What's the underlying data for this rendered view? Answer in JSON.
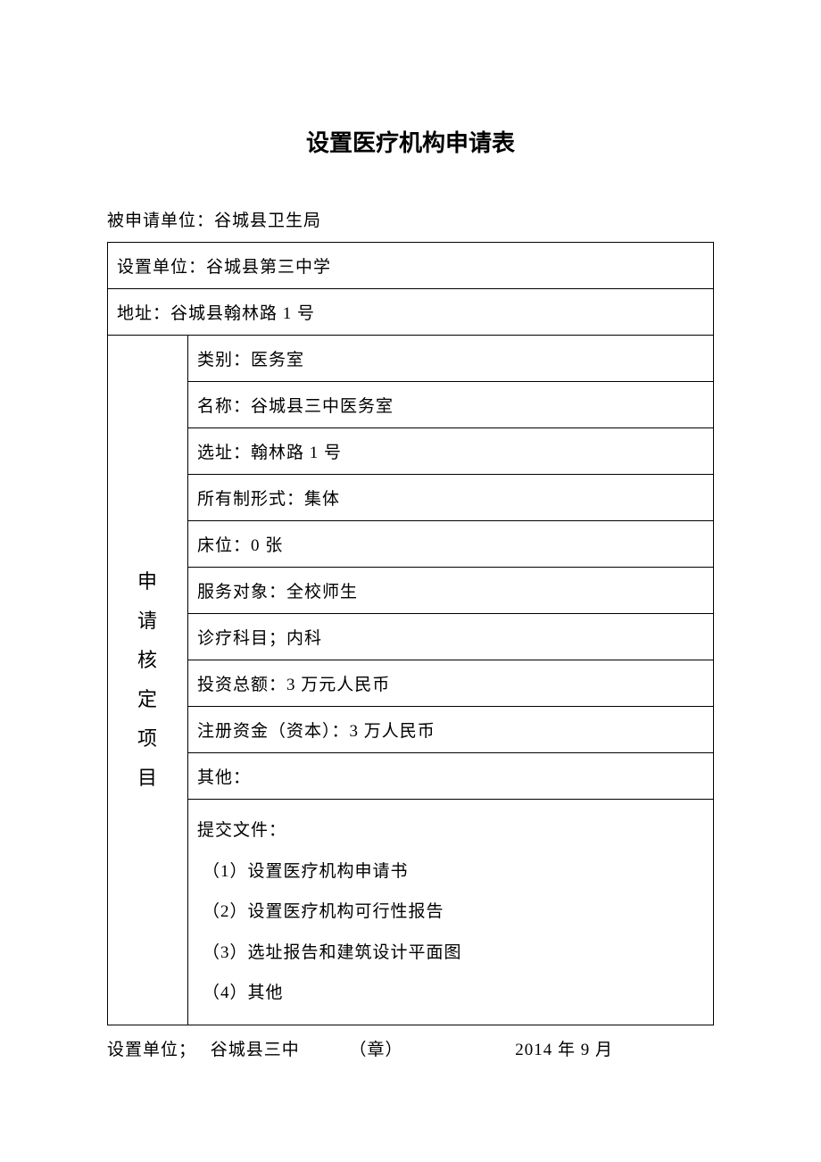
{
  "title": "设置医疗机构申请表",
  "pre_table": "被申请单位：谷城县卫生局",
  "table": {
    "row_unit": "设置单位：谷城县第三中学",
    "row_address": "地址：谷城县翰林路 1 号",
    "side_label_chars": [
      "申",
      "请",
      "核",
      "定",
      "项",
      "目"
    ],
    "rows": {
      "category": "类别：医务室",
      "name": "名称：谷城县三中医务室",
      "site": "选址：翰林路 1 号",
      "ownership": "所有制形式：集体",
      "beds": "床位：0 张",
      "service": "服务对象：全校师生",
      "department": "诊疗科目；内科",
      "investment": "投资总额：3 万元人民币",
      "capital": "注册资金（资本）：3 万人民币",
      "other": "其他：",
      "documents_header": "提交文件：",
      "documents": [
        "（1）设置医疗机构申请书",
        "（2）设置医疗机构可行性报告",
        "（3）选址报告和建筑设计平面图",
        "（4）其他"
      ]
    }
  },
  "footer": {
    "label": "设置单位；",
    "unit": "谷城县三中",
    "seal": "（章）",
    "date": "2014 年 9 月"
  },
  "colors": {
    "background": "#ffffff",
    "text": "#000000",
    "border": "#000000"
  }
}
